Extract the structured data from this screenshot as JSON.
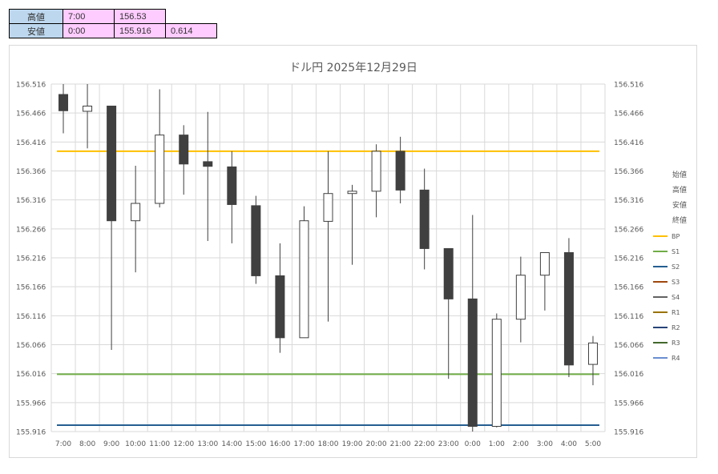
{
  "summary": {
    "high": {
      "label": "高値",
      "time": "7:00",
      "price": "156.53"
    },
    "low": {
      "label": "安値",
      "time": "0:00",
      "price": "155.916",
      "range": "0.614"
    }
  },
  "chart_data": {
    "type": "candlestick",
    "title": "ドル円  2025年12月29日",
    "ylim": [
      155.916,
      156.516
    ],
    "yticks": [
      "156.516",
      "156.466",
      "156.416",
      "156.366",
      "156.316",
      "156.266",
      "156.216",
      "156.166",
      "156.116",
      "156.066",
      "156.016",
      "155.966",
      "155.916"
    ],
    "categories": [
      "7:00",
      "8:00",
      "9:00",
      "10:00",
      "11:00",
      "12:00",
      "13:00",
      "14:00",
      "15:00",
      "16:00",
      "17:00",
      "18:00",
      "19:00",
      "20:00",
      "21:00",
      "22:00",
      "23:00",
      "0:00",
      "1:00",
      "2:00",
      "3:00",
      "4:00",
      "5:00"
    ],
    "ohlc": [
      {
        "o": 156.498,
        "h": 156.53,
        "l": 156.431,
        "c": 156.47
      },
      {
        "o": 156.469,
        "h": 156.53,
        "l": 156.405,
        "c": 156.478
      },
      {
        "o": 156.478,
        "h": 156.478,
        "l": 156.057,
        "c": 156.28
      },
      {
        "o": 156.28,
        "h": 156.375,
        "l": 156.191,
        "c": 156.31
      },
      {
        "o": 156.31,
        "h": 156.507,
        "l": 156.303,
        "c": 156.428
      },
      {
        "o": 156.428,
        "h": 156.445,
        "l": 156.325,
        "c": 156.378
      },
      {
        "o": 156.382,
        "h": 156.468,
        "l": 156.245,
        "c": 156.374
      },
      {
        "o": 156.373,
        "h": 156.4,
        "l": 156.241,
        "c": 156.308
      },
      {
        "o": 156.306,
        "h": 156.323,
        "l": 156.171,
        "c": 156.185
      },
      {
        "o": 156.185,
        "h": 156.241,
        "l": 156.052,
        "c": 156.078
      },
      {
        "o": 156.078,
        "h": 156.305,
        "l": 156.078,
        "c": 156.28
      },
      {
        "o": 156.279,
        "h": 156.4,
        "l": 156.106,
        "c": 156.327
      },
      {
        "o": 156.327,
        "h": 156.342,
        "l": 156.204,
        "c": 156.331
      },
      {
        "o": 156.331,
        "h": 156.412,
        "l": 156.286,
        "c": 156.4
      },
      {
        "o": 156.4,
        "h": 156.425,
        "l": 156.31,
        "c": 156.333
      },
      {
        "o": 156.333,
        "h": 156.37,
        "l": 156.196,
        "c": 156.232
      },
      {
        "o": 156.232,
        "h": 156.232,
        "l": 156.007,
        "c": 156.145
      },
      {
        "o": 156.145,
        "h": 156.29,
        "l": 155.916,
        "c": 155.925
      },
      {
        "o": 155.925,
        "h": 156.12,
        "l": 155.923,
        "c": 156.11
      },
      {
        "o": 156.11,
        "h": 156.218,
        "l": 156.07,
        "c": 156.186
      },
      {
        "o": 156.186,
        "h": 156.225,
        "l": 156.125,
        "c": 156.225
      },
      {
        "o": 156.225,
        "h": 156.25,
        "l": 156.01,
        "c": 156.031
      },
      {
        "o": 156.032,
        "h": 156.081,
        "l": 155.996,
        "c": 156.069
      }
    ],
    "levels": [
      {
        "name": "BP",
        "value": 156.4,
        "color": "#ffc000"
      },
      {
        "name": "S1",
        "value": 156.015,
        "color": "#70ad47"
      },
      {
        "name": "S2",
        "value": 155.927,
        "color": "#255e91"
      }
    ],
    "legend": {
      "position": "right",
      "text_items": [
        "始値",
        "高値",
        "安値",
        "終値"
      ],
      "line_items": [
        {
          "name": "BP",
          "color": "#ffc000"
        },
        {
          "name": "S1",
          "color": "#70ad47"
        },
        {
          "name": "S2",
          "color": "#255e91"
        },
        {
          "name": "S3",
          "color": "#9e480e"
        },
        {
          "name": "S4",
          "color": "#636363"
        },
        {
          "name": "R1",
          "color": "#997300"
        },
        {
          "name": "R2",
          "color": "#264478"
        },
        {
          "name": "R3",
          "color": "#43682b"
        },
        {
          "name": "R4",
          "color": "#698ed0"
        }
      ]
    },
    "colors": {
      "up_fill": "#ffffff",
      "down_fill": "#404040",
      "outline": "#404040",
      "grid": "#d9d9d9"
    },
    "grid": true
  }
}
